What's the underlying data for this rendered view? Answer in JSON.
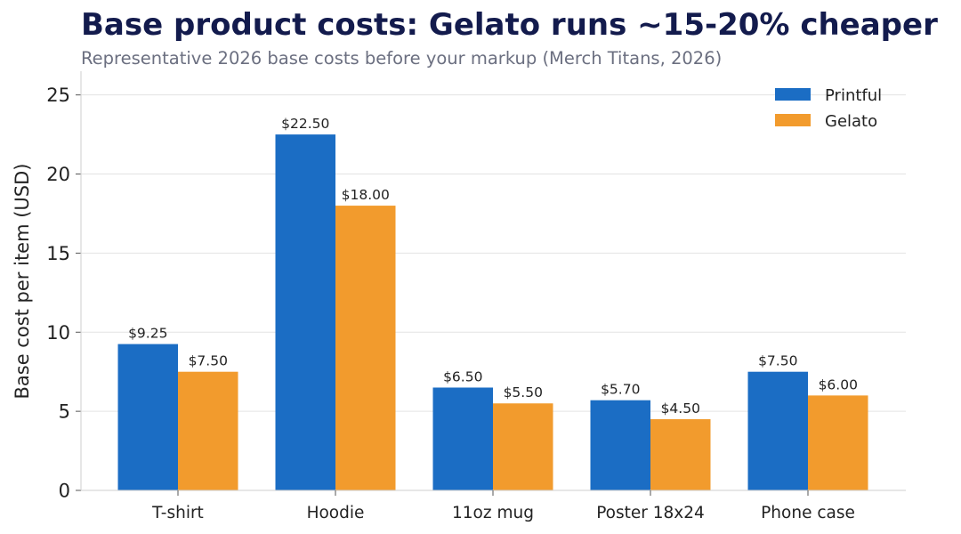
{
  "header": {
    "title": "Base product costs: Gelato runs ~15-20% cheaper",
    "subtitle": "Representative 2026 base costs before your markup (Merch Titans, 2026)"
  },
  "chart_data": {
    "type": "bar",
    "title": "Base product costs: Gelato runs ~15-20% cheaper",
    "subtitle": "Representative 2026 base costs before your markup (Merch Titans, 2026)",
    "xlabel": "",
    "ylabel": "Base cost per item (USD)",
    "categories": [
      "T-shirt",
      "Hoodie",
      "11oz mug",
      "Poster 18x24",
      "Phone case"
    ],
    "series": [
      {
        "name": "Printful",
        "color": "#1b6dc4",
        "values": [
          9.25,
          22.5,
          6.5,
          5.7,
          7.5
        ],
        "data_labels": [
          "$9.25",
          "$22.50",
          "$6.50",
          "$5.70",
          "$7.50"
        ]
      },
      {
        "name": "Gelato",
        "color": "#f29b2d",
        "values": [
          7.5,
          18.0,
          5.5,
          4.5,
          6.0
        ],
        "data_labels": [
          "$7.50",
          "$18.00",
          "$5.50",
          "$4.50",
          "$6.00"
        ]
      }
    ],
    "ylim": [
      0,
      26.5
    ],
    "yticks": [
      0,
      5,
      10,
      15,
      20,
      25
    ],
    "grid": "horizontal",
    "legend_position": "top-right"
  }
}
